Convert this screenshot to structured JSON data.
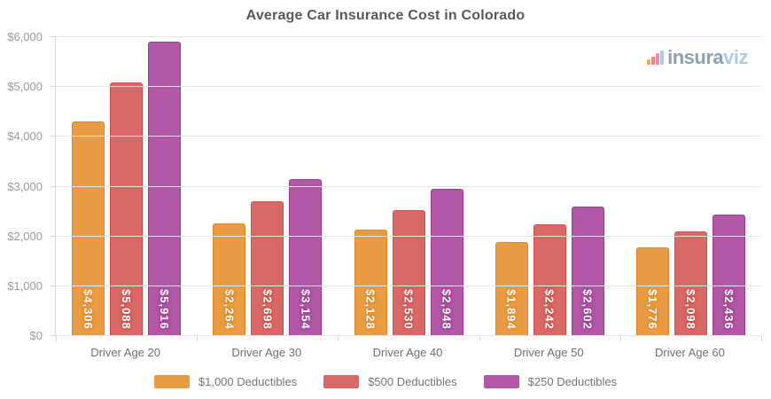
{
  "title": "Average Car Insurance Cost in Colorado",
  "logo": {
    "name": "insuraviz",
    "text_primary": "insura",
    "text_secondary": "viz",
    "primary_color": "#8497AD",
    "secondary_color": "#A5C8EA",
    "icon_bars": [
      {
        "color": "#F2A53B",
        "height": 6
      },
      {
        "color": "#EC7D72",
        "height": 9
      },
      {
        "color": "#E583B4",
        "height": 13
      },
      {
        "color": "#AFC6DE",
        "height": 16
      }
    ]
  },
  "chart_data": {
    "type": "bar",
    "title": "Average Car Insurance Cost in Colorado",
    "categories": [
      "Driver Age 20",
      "Driver Age 30",
      "Driver Age 40",
      "Driver Age 50",
      "Driver Age 60"
    ],
    "series": [
      {
        "name": "$1,000 Deductibles",
        "color": "#EA9C44",
        "border_color": "#DD8627",
        "values": [
          4306,
          2264,
          2128,
          1894,
          1776
        ],
        "display_values": [
          "$4,306",
          "$2,264",
          "$2,128",
          "$1,894",
          "$1,776"
        ]
      },
      {
        "name": "$500 Deductibles",
        "color": "#D96966",
        "border_color": "#CE4E4B",
        "values": [
          5088,
          2698,
          2530,
          2242,
          2098
        ],
        "display_values": [
          "$5,088",
          "$2,698",
          "$2,530",
          "$2,242",
          "$2,098"
        ]
      },
      {
        "name": "$250 Deductibles",
        "color": "#B158A6",
        "border_color": "#9C3D92",
        "values": [
          5916,
          3154,
          2948,
          2602,
          2436
        ],
        "display_values": [
          "$5,916",
          "$3,154",
          "$2,948",
          "$2,602",
          "$2,436"
        ]
      }
    ],
    "ylim": [
      0,
      6000
    ],
    "y_tick_interval": 1000,
    "y_tick_labels": [
      "$0",
      "$1,000",
      "$2,000",
      "$3,000",
      "$4,000",
      "$5,000",
      "$6,000"
    ],
    "grid": true,
    "legend_position": "bottom"
  }
}
